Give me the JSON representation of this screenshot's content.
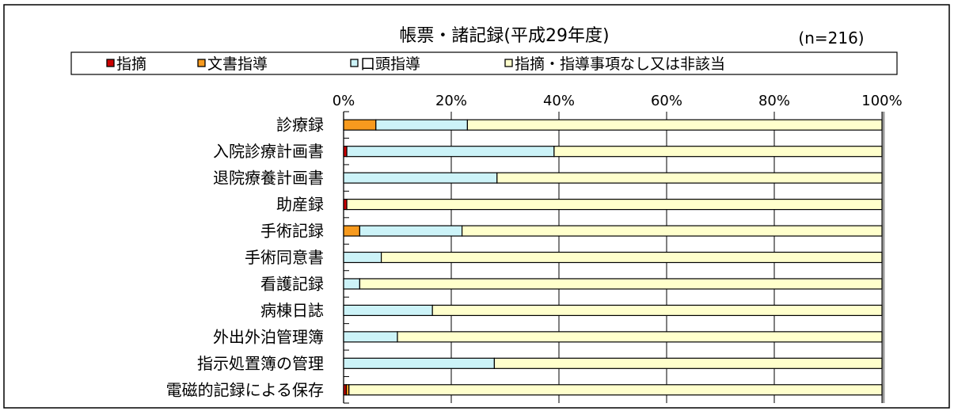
{
  "chart_data": {
    "type": "bar",
    "orientation": "horizontal",
    "stacked": true,
    "percent": true,
    "title": "帳票・諸記録(平成29年度)",
    "sample_size": "(n=216)",
    "categories": [
      "診療録",
      "入院診療計画書",
      "退院療養計画書",
      "助産録",
      "手術記録",
      "手術同意書",
      "看護記録",
      "病棟日誌",
      "外出外泊管理簿",
      "指示処置簿の管理",
      "電磁的記録による保存"
    ],
    "series": [
      {
        "name": "指摘",
        "color": "#cc0000",
        "values": [
          0,
          0.6,
          0,
          0.6,
          0,
          0,
          0,
          0,
          0,
          0,
          0.5
        ]
      },
      {
        "name": "文書指導",
        "color": "#f79a1e",
        "values": [
          6,
          0,
          0,
          0,
          3,
          0,
          0,
          0,
          0,
          0,
          0.5
        ]
      },
      {
        "name": "口頭指導",
        "color": "#ccf3f8",
        "values": [
          17,
          38.5,
          28.5,
          0,
          19,
          7,
          3,
          16.5,
          10,
          28,
          0
        ]
      },
      {
        "name": "指摘・指導事項なし又は非該当",
        "color": "#ffffcc",
        "values": [
          77,
          60.9,
          71.5,
          99.4,
          78,
          93,
          97,
          83.5,
          90,
          72,
          99
        ]
      }
    ],
    "xlim": [
      0,
      100
    ],
    "xticks": [
      "0%",
      "20%",
      "40%",
      "60%",
      "80%",
      "100%"
    ],
    "legend_position": "top",
    "grid": true
  }
}
